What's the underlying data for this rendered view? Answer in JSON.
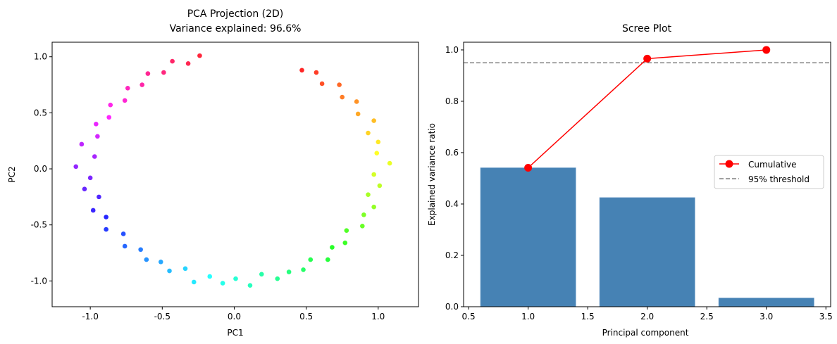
{
  "chart_data": [
    {
      "type": "scatter",
      "title": "PCA Projection (2D)",
      "subtitle": "Variance explained: 96.6%",
      "xlabel": "PC1",
      "ylabel": "PC2",
      "xlim": [
        -1.265,
        1.28
      ],
      "ylim": [
        -1.23,
        1.13
      ],
      "xticks": [
        "-1.0",
        "-0.5",
        "0.0",
        "0.5",
        "1.0"
      ],
      "xtick_values": [
        -1.0,
        -0.5,
        0.0,
        0.5,
        1.0
      ],
      "yticks": [
        "-1.0",
        "-0.5",
        "0.0",
        "0.5",
        "1.0"
      ],
      "ytick_values": [
        -1.0,
        -0.5,
        0.0,
        0.5,
        1.0
      ],
      "colormap": "hsv",
      "grid": false,
      "points": [
        [
          0.47,
          0.88
        ],
        [
          0.57,
          0.86
        ],
        [
          0.61,
          0.76
        ],
        [
          0.73,
          0.75
        ],
        [
          0.75,
          0.64
        ],
        [
          0.85,
          0.6
        ],
        [
          0.86,
          0.49
        ],
        [
          0.97,
          0.43
        ],
        [
          0.93,
          0.32
        ],
        [
          1.0,
          0.24
        ],
        [
          0.99,
          0.14
        ],
        [
          1.08,
          0.05
        ],
        [
          0.97,
          -0.05
        ],
        [
          1.01,
          -0.15
        ],
        [
          0.93,
          -0.23
        ],
        [
          0.97,
          -0.34
        ],
        [
          0.9,
          -0.41
        ],
        [
          0.89,
          -0.51
        ],
        [
          0.78,
          -0.55
        ],
        [
          0.77,
          -0.66
        ],
        [
          0.68,
          -0.7
        ],
        [
          0.65,
          -0.81
        ],
        [
          0.53,
          -0.81
        ],
        [
          0.48,
          -0.9
        ],
        [
          0.38,
          -0.92
        ],
        [
          0.3,
          -0.98
        ],
        [
          0.19,
          -0.94
        ],
        [
          0.11,
          -1.04
        ],
        [
          0.01,
          -0.98
        ],
        [
          -0.08,
          -1.02
        ],
        [
          -0.17,
          -0.96
        ],
        [
          -0.28,
          -1.01
        ],
        [
          -0.34,
          -0.89
        ],
        [
          -0.45,
          -0.91
        ],
        [
          -0.51,
          -0.83
        ],
        [
          -0.61,
          -0.81
        ],
        [
          -0.65,
          -0.72
        ],
        [
          -0.76,
          -0.69
        ],
        [
          -0.77,
          -0.58
        ],
        [
          -0.89,
          -0.54
        ],
        [
          -0.89,
          -0.43
        ],
        [
          -0.98,
          -0.37
        ],
        [
          -0.94,
          -0.25
        ],
        [
          -1.04,
          -0.18
        ],
        [
          -1.0,
          -0.08
        ],
        [
          -1.1,
          0.02
        ],
        [
          -0.97,
          0.11
        ],
        [
          -1.06,
          0.22
        ],
        [
          -0.95,
          0.29
        ],
        [
          -0.96,
          0.4
        ],
        [
          -0.87,
          0.46
        ],
        [
          -0.86,
          0.57
        ],
        [
          -0.76,
          0.61
        ],
        [
          -0.74,
          0.72
        ],
        [
          -0.64,
          0.75
        ],
        [
          -0.6,
          0.85
        ],
        [
          -0.49,
          0.86
        ],
        [
          -0.43,
          0.96
        ],
        [
          -0.32,
          0.94
        ],
        [
          -0.24,
          1.01
        ]
      ]
    },
    {
      "type": "bar",
      "title": "Scree Plot",
      "xlabel": "Principal component",
      "ylabel": "Explained variance ratio",
      "xlim": [
        0.458,
        3.54
      ],
      "ylim": [
        0,
        1.03
      ],
      "xticks": [
        "0.5",
        "1.0",
        "1.5",
        "2.0",
        "2.5",
        "3.0",
        "3.5"
      ],
      "xtick_values": [
        0.5,
        1.0,
        1.5,
        2.0,
        2.5,
        3.0,
        3.5
      ],
      "yticks": [
        "0.0",
        "0.2",
        "0.4",
        "0.6",
        "0.8",
        "1.0"
      ],
      "ytick_values": [
        0,
        0.2,
        0.4,
        0.6,
        0.8,
        1.0
      ],
      "categories": [
        1,
        2,
        3
      ],
      "values": [
        0.541,
        0.425,
        0.034
      ],
      "bar_color": "#4682b4",
      "cumulative": {
        "name": "Cumulative",
        "x": [
          1,
          2,
          3
        ],
        "values": [
          0.541,
          0.966,
          1.0
        ],
        "color": "#ff0000"
      },
      "threshold": {
        "name": "95% threshold",
        "value": 0.95,
        "color": "#808080"
      },
      "legend": "center-right",
      "grid": false
    }
  ]
}
